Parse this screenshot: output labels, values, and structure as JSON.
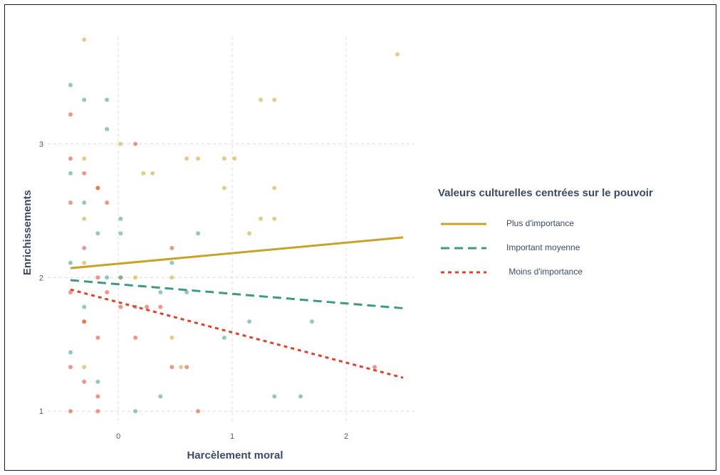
{
  "chart_data": {
    "type": "scatter",
    "title": "",
    "xlabel": "Harcèlement moral",
    "ylabel": "Enrichissements",
    "xlim": [
      -0.62,
      2.6
    ],
    "ylim": [
      0.9,
      3.8
    ],
    "xticks": [
      0,
      1,
      2
    ],
    "yticks": [
      1,
      2,
      3
    ],
    "grid": true,
    "legend": {
      "title": "Valeurs culturelles centrées sur le pouvoir",
      "placement": "right",
      "entries": [
        "Plus d'importance",
        "Important moyenne",
        " Moins d'importance"
      ]
    },
    "series": [
      {
        "name": "Plus d'importance",
        "color": "#c9a227",
        "line_style": "solid",
        "trend": {
          "x": [
            -0.42,
            2.5
          ],
          "y": [
            2.07,
            2.3
          ]
        },
        "points": [
          [
            -0.3,
            3.78
          ],
          [
            2.45,
            3.67
          ],
          [
            1.25,
            3.33
          ],
          [
            1.37,
            3.33
          ],
          [
            0.6,
            2.89
          ],
          [
            0.7,
            2.89
          ],
          [
            0.93,
            2.89
          ],
          [
            1.02,
            2.89
          ],
          [
            0.22,
            2.78
          ],
          [
            0.3,
            2.78
          ],
          [
            1.37,
            2.67
          ],
          [
            0.93,
            2.67
          ],
          [
            1.25,
            2.44
          ],
          [
            1.37,
            2.44
          ],
          [
            1.15,
            2.33
          ],
          [
            -0.3,
            2.89
          ],
          [
            -0.18,
            2.67
          ],
          [
            -0.3,
            2.44
          ],
          [
            -0.3,
            2.11
          ],
          [
            -0.3,
            1.67
          ],
          [
            -0.3,
            1.33
          ],
          [
            0.02,
            2.0
          ],
          [
            0.15,
            2.0
          ],
          [
            0.47,
            2.0
          ],
          [
            0.47,
            1.55
          ],
          [
            0.55,
            1.33
          ],
          [
            0.02,
            3.0
          ]
        ]
      },
      {
        "name": "Important moyenne",
        "color": "#3d9a86",
        "line_style": "dashed",
        "trend": {
          "x": [
            -0.42,
            2.5
          ],
          "y": [
            1.98,
            1.77
          ]
        },
        "points": [
          [
            -0.42,
            3.44
          ],
          [
            -0.3,
            3.33
          ],
          [
            -0.1,
            3.33
          ],
          [
            -0.1,
            3.11
          ],
          [
            -0.42,
            2.78
          ],
          [
            -0.3,
            2.56
          ],
          [
            -0.18,
            2.33
          ],
          [
            -0.42,
            2.11
          ],
          [
            -0.3,
            1.78
          ],
          [
            -0.42,
            1.44
          ],
          [
            -0.18,
            1.22
          ],
          [
            0.02,
            2.33
          ],
          [
            0.02,
            2.0
          ],
          [
            -0.1,
            2.0
          ],
          [
            0.15,
            1.78
          ],
          [
            0.37,
            1.89
          ],
          [
            0.6,
            1.89
          ],
          [
            0.93,
            1.55
          ],
          [
            1.15,
            1.67
          ],
          [
            1.37,
            1.11
          ],
          [
            1.6,
            1.11
          ],
          [
            0.37,
            1.11
          ],
          [
            0.15,
            1.0
          ],
          [
            0.02,
            2.44
          ],
          [
            0.47,
            2.11
          ],
          [
            0.7,
            2.33
          ],
          [
            1.7,
            1.67
          ]
        ]
      },
      {
        "name": " Moins d'importance",
        "color": "#e0402c",
        "line_style": "dotted",
        "trend": {
          "x": [
            -0.42,
            2.5
          ],
          "y": [
            1.91,
            1.25
          ]
        },
        "points": [
          [
            -0.42,
            3.22
          ],
          [
            -0.42,
            2.89
          ],
          [
            -0.3,
            2.78
          ],
          [
            -0.18,
            2.67
          ],
          [
            -0.42,
            2.56
          ],
          [
            -0.3,
            2.22
          ],
          [
            -0.18,
            2.0
          ],
          [
            -0.42,
            1.89
          ],
          [
            -0.3,
            1.67
          ],
          [
            -0.18,
            1.55
          ],
          [
            -0.42,
            1.33
          ],
          [
            -0.3,
            1.22
          ],
          [
            -0.18,
            1.11
          ],
          [
            -0.42,
            1.0
          ],
          [
            -0.18,
            1.0
          ],
          [
            -0.1,
            1.89
          ],
          [
            0.02,
            1.78
          ],
          [
            0.15,
            1.55
          ],
          [
            0.25,
            1.78
          ],
          [
            0.37,
            1.78
          ],
          [
            0.47,
            1.33
          ],
          [
            0.6,
            1.33
          ],
          [
            0.15,
            3.0
          ],
          [
            2.25,
            1.33
          ],
          [
            0.47,
            2.22
          ],
          [
            0.7,
            1.0
          ],
          [
            -0.1,
            2.56
          ]
        ]
      }
    ]
  }
}
